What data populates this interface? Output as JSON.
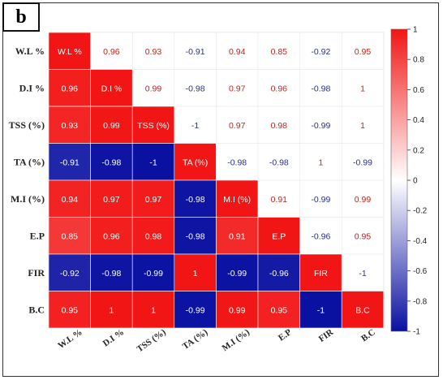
{
  "panel_label": "b",
  "chart_data": {
    "type": "heatmap",
    "subtype": "correlation-matrix-upper-values-lower-squares",
    "variables": [
      "W.L %",
      "D.I %",
      "TSS (%)",
      "TA (%)",
      "M.I (%)",
      "E.P",
      "FIR",
      "B.C"
    ],
    "diagonal_labels": [
      "W.L %",
      "D.I %",
      "TSS (%)",
      "TA (%)",
      "M.I (%)",
      "E.P",
      "FIR",
      "B.C"
    ],
    "row_labels": [
      "W.L %",
      "D.I %",
      "TSS (%)",
      "TA (%)",
      "M.I (%)",
      "E.P",
      "FIR",
      "B.C"
    ],
    "col_labels": [
      "W.L %",
      "D.I %",
      "TSS (%)",
      "TA (%)",
      "M.I (%)",
      "E.P",
      "FIR",
      "B.C"
    ],
    "matrix": [
      [
        1,
        0.96,
        0.93,
        -0.91,
        0.94,
        0.85,
        -0.92,
        0.95
      ],
      [
        0.96,
        1,
        0.99,
        -0.98,
        0.97,
        0.96,
        -0.98,
        1
      ],
      [
        0.93,
        0.99,
        1,
        -1,
        0.97,
        0.98,
        -0.99,
        1
      ],
      [
        -0.91,
        -0.98,
        -1,
        1,
        -0.98,
        -0.98,
        1,
        -0.99
      ],
      [
        0.94,
        0.97,
        0.97,
        -0.98,
        1,
        0.91,
        -0.99,
        0.99
      ],
      [
        0.85,
        0.96,
        0.98,
        -0.98,
        0.91,
        1,
        -0.96,
        0.95
      ],
      [
        -0.92,
        -0.98,
        -0.99,
        1,
        -0.99,
        -0.96,
        1,
        -1
      ],
      [
        0.95,
        1,
        1,
        -0.99,
        0.99,
        0.95,
        -1,
        1
      ]
    ],
    "value_range": [
      -1,
      1
    ],
    "colorbar_ticks": [
      1,
      0.8,
      0.6,
      0.4,
      0.2,
      0,
      -0.2,
      -0.4,
      -0.6,
      -0.8,
      -1
    ],
    "colors": {
      "negative": "#0a10a0",
      "neutral": "#ffffff",
      "positive": "#f21515",
      "text_pos": "#c0261d",
      "text_neg": "#2a2f8a"
    }
  }
}
